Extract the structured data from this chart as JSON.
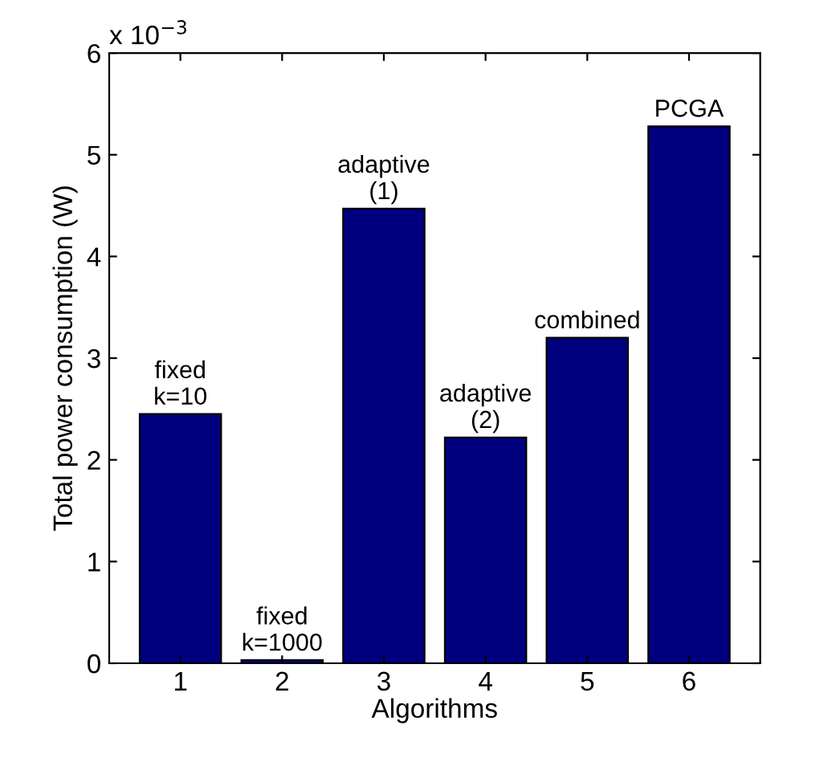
{
  "chart_data": {
    "type": "bar",
    "xlabel": "Algorithms",
    "ylabel": "Total power consumption (W)",
    "categories": [
      "1",
      "2",
      "3",
      "4",
      "5",
      "6"
    ],
    "values": [
      2.45,
      0.03,
      4.47,
      2.22,
      3.2,
      5.28
    ],
    "color": "#00007f",
    "ylim": [
      0,
      6
    ],
    "yticks": [
      0,
      1,
      2,
      3,
      4,
      5,
      6
    ],
    "annotations": [
      "x 10$^{−3}$",
      {
        "text": "fixed\nk=10",
        "x": "1",
        "y": 2.45
      },
      {
        "text": "fixed\nk=1000",
        "x": "2",
        "y": 0.03
      },
      {
        "text": "adaptive\n(1)",
        "x": "3",
        "y": 4.47
      },
      {
        "text": "adaptive\n(2)",
        "x": "4",
        "y": 2.22
      },
      {
        "text": "combined",
        "x": "5",
        "y": 3.2
      },
      {
        "text": "PCGA",
        "x": "6",
        "y": 5.28
      }
    ],
    "grid": false
  }
}
